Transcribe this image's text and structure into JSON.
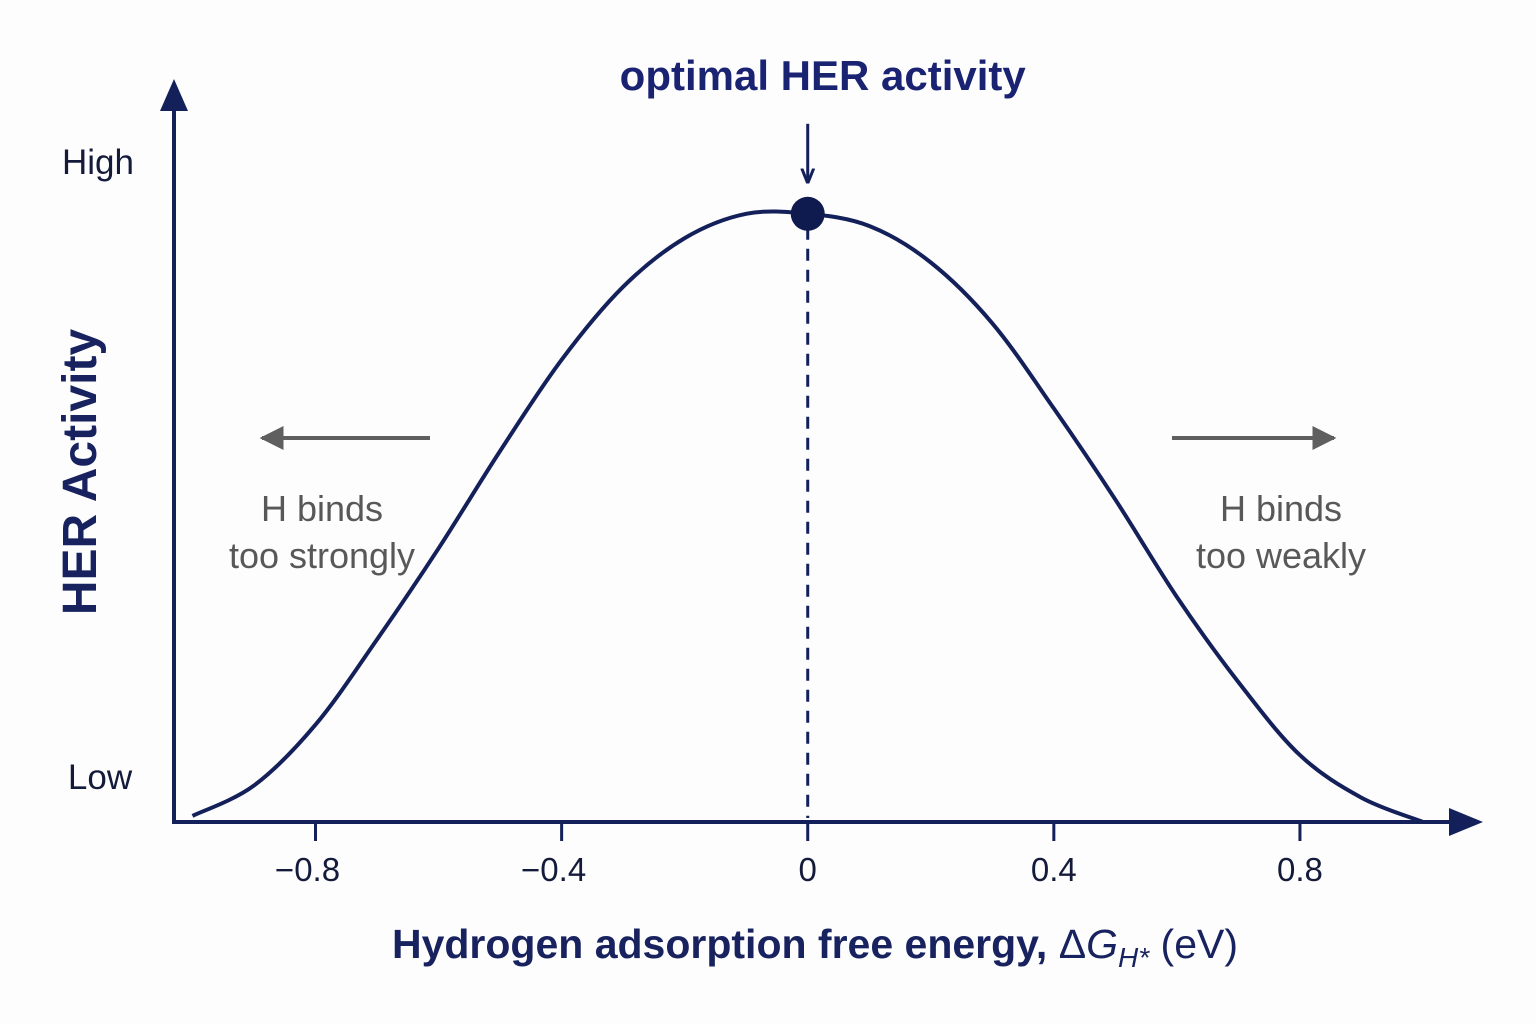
{
  "chart_data": {
    "type": "line",
    "peak_label": "optimal HER activity",
    "xlabel": {
      "main": "Hydrogen adsorption free energy, ",
      "delta": "Δ",
      "symbol": "G",
      "subscript": "H*",
      "unit": " (eV)"
    },
    "ylabel": "HER Activity",
    "y_levels": {
      "high": "High",
      "low": "Low"
    },
    "x_ticks": [
      {
        "value": -0.8,
        "label": "−0.8"
      },
      {
        "value": -0.4,
        "label": "−0.4"
      },
      {
        "value": 0,
        "label": "0"
      },
      {
        "value": 0.4,
        "label": "0.4"
      },
      {
        "value": 0.8,
        "label": "0.8"
      }
    ],
    "xlim": [
      -1.03,
      1.0
    ],
    "ylim": [
      0,
      1.22
    ],
    "series": [
      {
        "x": [
          -1.0,
          -0.9,
          -0.8,
          -0.7,
          -0.6,
          -0.5,
          -0.4,
          -0.3,
          -0.2,
          -0.1,
          0.0,
          0.1,
          0.2,
          0.3,
          0.4,
          0.5,
          0.6,
          0.7,
          0.8,
          0.9,
          1.0
        ],
        "y": [
          0.01,
          0.06,
          0.16,
          0.3,
          0.45,
          0.61,
          0.76,
          0.88,
          0.96,
          1.0,
          1.0,
          0.98,
          0.92,
          0.82,
          0.68,
          0.53,
          0.37,
          0.23,
          0.11,
          0.04,
          0.0
        ]
      }
    ],
    "peak": {
      "x": 0,
      "y": 1.0
    },
    "annotations": [
      {
        "side": "left",
        "lines": [
          "H binds",
          "too strongly"
        ]
      },
      {
        "side": "right",
        "lines": [
          "H binds",
          "too weakly"
        ]
      }
    ],
    "grid": false,
    "legend": "none",
    "colors": {
      "curve": "#14205a",
      "axis": "#14205a",
      "note_arrow": "#5f5f5f",
      "title": "#1a2272"
    }
  }
}
